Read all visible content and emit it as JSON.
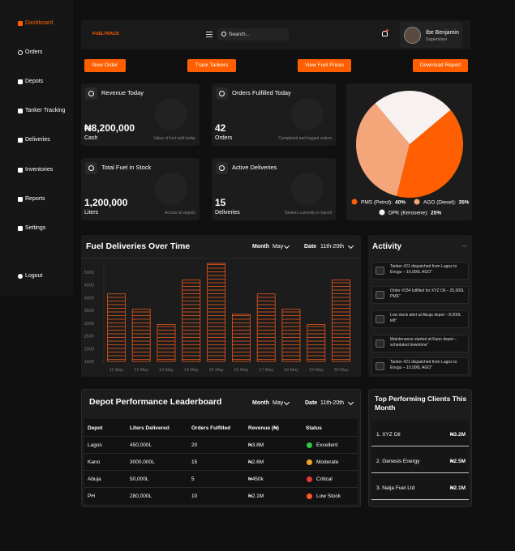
{
  "sidebar": {
    "items": [
      "Dashboard",
      "Orders",
      "Depots",
      "Tanker Tracking",
      "Deliveries",
      "Inventories",
      "Reports",
      "Settings"
    ],
    "logout": "Logout"
  },
  "header": {
    "brand": "FUELTRACK",
    "search": "Search...",
    "user_name": "Ibe Benjamin",
    "user_role": "Supervisor"
  },
  "actions": [
    "New Order",
    "Track Tankers",
    "View Fuel Prices",
    "Download Report"
  ],
  "stats": [
    {
      "title": "Revenue Today",
      "value": "₦8,200,000",
      "unit": "Cash",
      "note": "Value of fuel sold today"
    },
    {
      "title": "Orders Fulfilled Today",
      "value": "42",
      "unit": "Orders",
      "note": "Completed and logged orders"
    },
    {
      "title": "Total Fuel in Stock",
      "value": "1,200,000",
      "unit": "Liters",
      "note": "Across all depots"
    },
    {
      "title": "Active Deliveries",
      "value": "15",
      "unit": "Deliveries",
      "note": "Tankers currently in transit"
    }
  ],
  "chart_data": [
    {
      "type": "pie",
      "categories": [
        "PMS (Petrol):",
        "AGO (Diesel):",
        "DPK (Kerosene):"
      ],
      "values": [
        40,
        35,
        25
      ],
      "value_labels": [
        "40%",
        "35%",
        "25%"
      ],
      "colors": [
        "#ff5f00",
        "#f4a57a",
        "#f7f2ef"
      ]
    },
    {
      "type": "bar",
      "title": "Fuel Deliveries Over Time",
      "filters": [
        {
          "label": "Month",
          "value": "May"
        },
        {
          "label": "Date",
          "value": "11th-20th"
        }
      ],
      "categories": [
        "11 May",
        "12 May",
        "13 May",
        "14 May",
        "15 May",
        "16 May",
        "17 May",
        "18 May",
        "19 May",
        "20 May"
      ],
      "values": [
        4150,
        3550,
        2950,
        4700,
        5350,
        3350,
        4150,
        3550,
        2950,
        4700
      ],
      "color": "#e8571c",
      "ylim": [
        1500,
        5500
      ],
      "yticks": [
        1500,
        2000,
        2500,
        3000,
        3500,
        4000,
        4500,
        5000
      ]
    }
  ],
  "activity": {
    "title": "Activity",
    "more": "...",
    "items": [
      "Tanker #21 dispatched from Lagos to Enugu – 10,000L AGO\"",
      "Order #234 fulfilled for XYZ Oil – 25,000L PMS\"",
      "Low stock alert at Abuja depot – 8,000L left\"",
      "Maintenance started at Kano depot – scheduled downtime\"",
      "Tanker #21 dispatched from Lagos to Enugu – 10,000L AGO\""
    ]
  },
  "leaderboard": {
    "title": "Depot Performance Leaderboard",
    "filters": [
      {
        "label": "Month",
        "value": "May"
      },
      {
        "label": "Date",
        "value": "11th-20th"
      }
    ],
    "columns": [
      "Depot",
      "Liters Delivered",
      "Orders Fulfilled",
      "Revenue (₦)",
      "Status"
    ],
    "rows": [
      [
        "Lagos",
        "450,000L",
        "20",
        "₦3.8M",
        "Excellent"
      ],
      [
        "Kano",
        "3000,000L",
        "15",
        "₦2.6M",
        "Moderate"
      ],
      [
        "Abuja",
        "50,000L",
        "5",
        "₦450k",
        "Critical"
      ],
      [
        "PH",
        "280,000L",
        "10",
        "₦2.1M",
        "Low Stock"
      ]
    ],
    "status_colors": [
      "#2ecc40",
      "#f5a623",
      "#e53935",
      "#ff5722"
    ]
  },
  "clients": {
    "title": "Top Performing Clients This Month",
    "rows": [
      [
        "1. XYZ Oil",
        "₦3.2M"
      ],
      [
        "2. Genesis Energy",
        "₦2.5M"
      ],
      [
        "3. Naija Fuel Ltd",
        "₦2.1M"
      ]
    ]
  }
}
